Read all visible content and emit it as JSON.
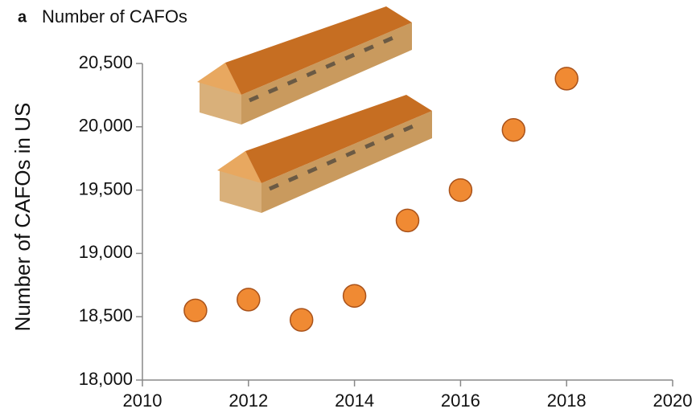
{
  "chart_data": {
    "type": "scatter",
    "panel_label": "a",
    "title": "Number of CAFOs",
    "y_label": "Number of CAFOs in US",
    "x": [
      2011,
      2012,
      2013,
      2014,
      2015,
      2016,
      2017,
      2018
    ],
    "series": [
      {
        "color": "#f08a33",
        "values": [
          18550,
          18635,
          18475,
          18665,
          19260,
          19500,
          19975,
          20380
        ]
      }
    ],
    "xlim": [
      2010,
      2020
    ],
    "xticks": [
      2010,
      2012,
      2014,
      2016,
      2018,
      2020
    ],
    "ylim": [
      18000,
      20500
    ],
    "yticks": [
      {
        "value": 18000,
        "label": "18,000"
      },
      {
        "value": 18500,
        "label": "18,500"
      },
      {
        "value": 19000,
        "label": "19,000"
      },
      {
        "value": 19500,
        "label": "19,500"
      },
      {
        "value": 20000,
        "label": "20,000"
      },
      {
        "value": 20500,
        "label": "20,500"
      }
    ]
  }
}
